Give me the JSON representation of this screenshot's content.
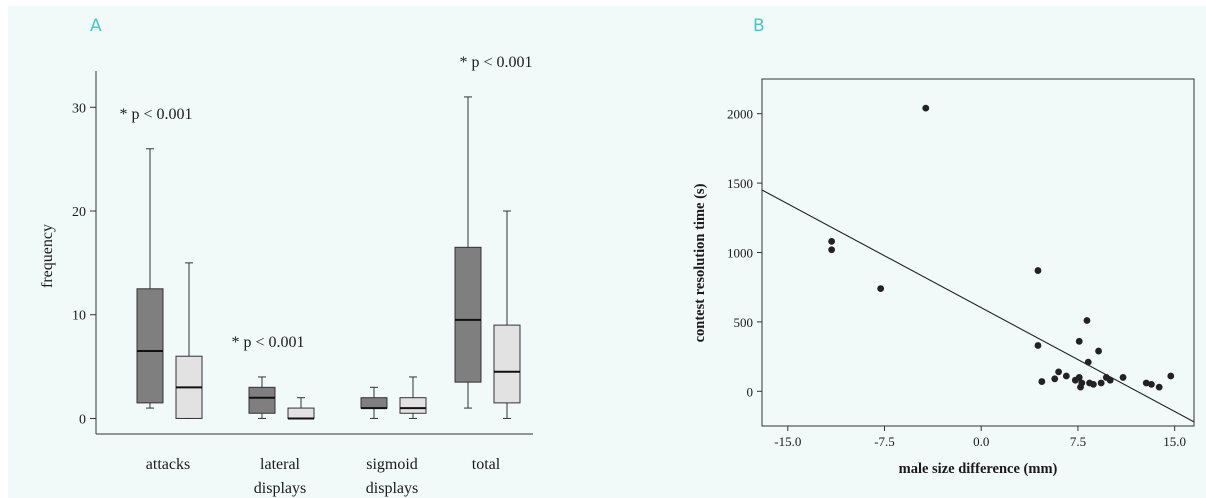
{
  "panels": {
    "a_letter": "A",
    "b_letter": "B"
  },
  "chart_data": [
    {
      "type": "box",
      "ylabel": "frequency",
      "ylim": [
        -1.5,
        33.5
      ],
      "yticks": [
        0,
        10,
        20,
        30
      ],
      "categories": [
        "attacks",
        "lateral displays",
        "sigmoid displays",
        "total"
      ],
      "category_tick_labels": [
        [
          "attacks"
        ],
        [
          "lateral",
          "displays"
        ],
        [
          "sigmoid",
          "displays"
        ],
        [
          "total"
        ]
      ],
      "groups": [
        {
          "annotation": "* p < 0.001",
          "boxes": [
            {
              "fill": "#7f7f7f",
              "min": 1,
              "q1": 1.5,
              "median": 6.5,
              "q3": 12.5,
              "max": 26
            },
            {
              "fill": "#e2e2e2",
              "min": 0,
              "q1": 0,
              "median": 3,
              "q3": 6,
              "max": 15
            }
          ]
        },
        {
          "annotation": "* p < 0.001",
          "boxes": [
            {
              "fill": "#7f7f7f",
              "min": 0,
              "q1": 0.5,
              "median": 2,
              "q3": 3,
              "max": 4
            },
            {
              "fill": "#e2e2e2",
              "min": 0,
              "q1": 0,
              "median": 0,
              "q3": 1,
              "max": 2
            }
          ]
        },
        {
          "annotation": "",
          "boxes": [
            {
              "fill": "#7f7f7f",
              "min": 0,
              "q1": 1,
              "median": 1,
              "q3": 2,
              "max": 3
            },
            {
              "fill": "#e2e2e2",
              "min": 0,
              "q1": 0.5,
              "median": 1,
              "q3": 2,
              "max": 4
            }
          ]
        },
        {
          "annotation": "* p < 0.001",
          "boxes": [
            {
              "fill": "#7f7f7f",
              "min": 1,
              "q1": 3.5,
              "median": 9.5,
              "q3": 16.5,
              "max": 31
            },
            {
              "fill": "#e2e2e2",
              "min": 0,
              "q1": 1.5,
              "median": 4.5,
              "q3": 9,
              "max": 20
            }
          ]
        }
      ]
    },
    {
      "type": "scatter",
      "xlabel": "male size difference (mm)",
      "ylabel": "contest resolution time (s)",
      "xlim": [
        -17.0,
        16.5
      ],
      "ylim": [
        -250,
        2250
      ],
      "xticks": [
        "-15.0",
        "-7.5",
        "0.0",
        "7.5",
        "15.0"
      ],
      "yticks": [
        "0",
        "500",
        "1000",
        "1500",
        "2000"
      ],
      "points": [
        {
          "x": -4.3,
          "y": 2040
        },
        {
          "x": -11.6,
          "y": 1080
        },
        {
          "x": -11.6,
          "y": 1020
        },
        {
          "x": -7.8,
          "y": 740
        },
        {
          "x": 4.4,
          "y": 870
        },
        {
          "x": 4.4,
          "y": 330
        },
        {
          "x": 4.7,
          "y": 70
        },
        {
          "x": 5.7,
          "y": 90
        },
        {
          "x": 6.0,
          "y": 140
        },
        {
          "x": 6.6,
          "y": 110
        },
        {
          "x": 7.3,
          "y": 80
        },
        {
          "x": 7.6,
          "y": 360
        },
        {
          "x": 7.6,
          "y": 100
        },
        {
          "x": 7.8,
          "y": 60
        },
        {
          "x": 7.7,
          "y": 30
        },
        {
          "x": 8.2,
          "y": 510
        },
        {
          "x": 8.3,
          "y": 210
        },
        {
          "x": 8.4,
          "y": 60
        },
        {
          "x": 8.7,
          "y": 50
        },
        {
          "x": 9.1,
          "y": 290
        },
        {
          "x": 9.3,
          "y": 60
        },
        {
          "x": 9.7,
          "y": 100
        },
        {
          "x": 10.0,
          "y": 80
        },
        {
          "x": 11.0,
          "y": 100
        },
        {
          "x": 12.8,
          "y": 60
        },
        {
          "x": 13.2,
          "y": 50
        },
        {
          "x": 13.8,
          "y": 30
        },
        {
          "x": 14.7,
          "y": 110
        }
      ],
      "fit_line": {
        "x": [
          -17.0,
          16.5
        ],
        "y": [
          1450,
          -220
        ]
      }
    }
  ]
}
